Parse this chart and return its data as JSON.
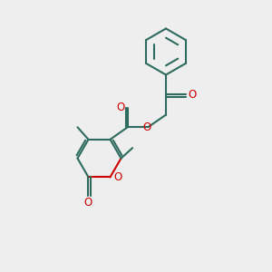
{
  "bg_color": "#eeeeee",
  "bond_color": "#2d6b5e",
  "heteroatom_color": "#cc0000",
  "line_width": 1.5,
  "font_size": 8.5,
  "xlim": [
    0,
    10
  ],
  "ylim": [
    0,
    10
  ]
}
